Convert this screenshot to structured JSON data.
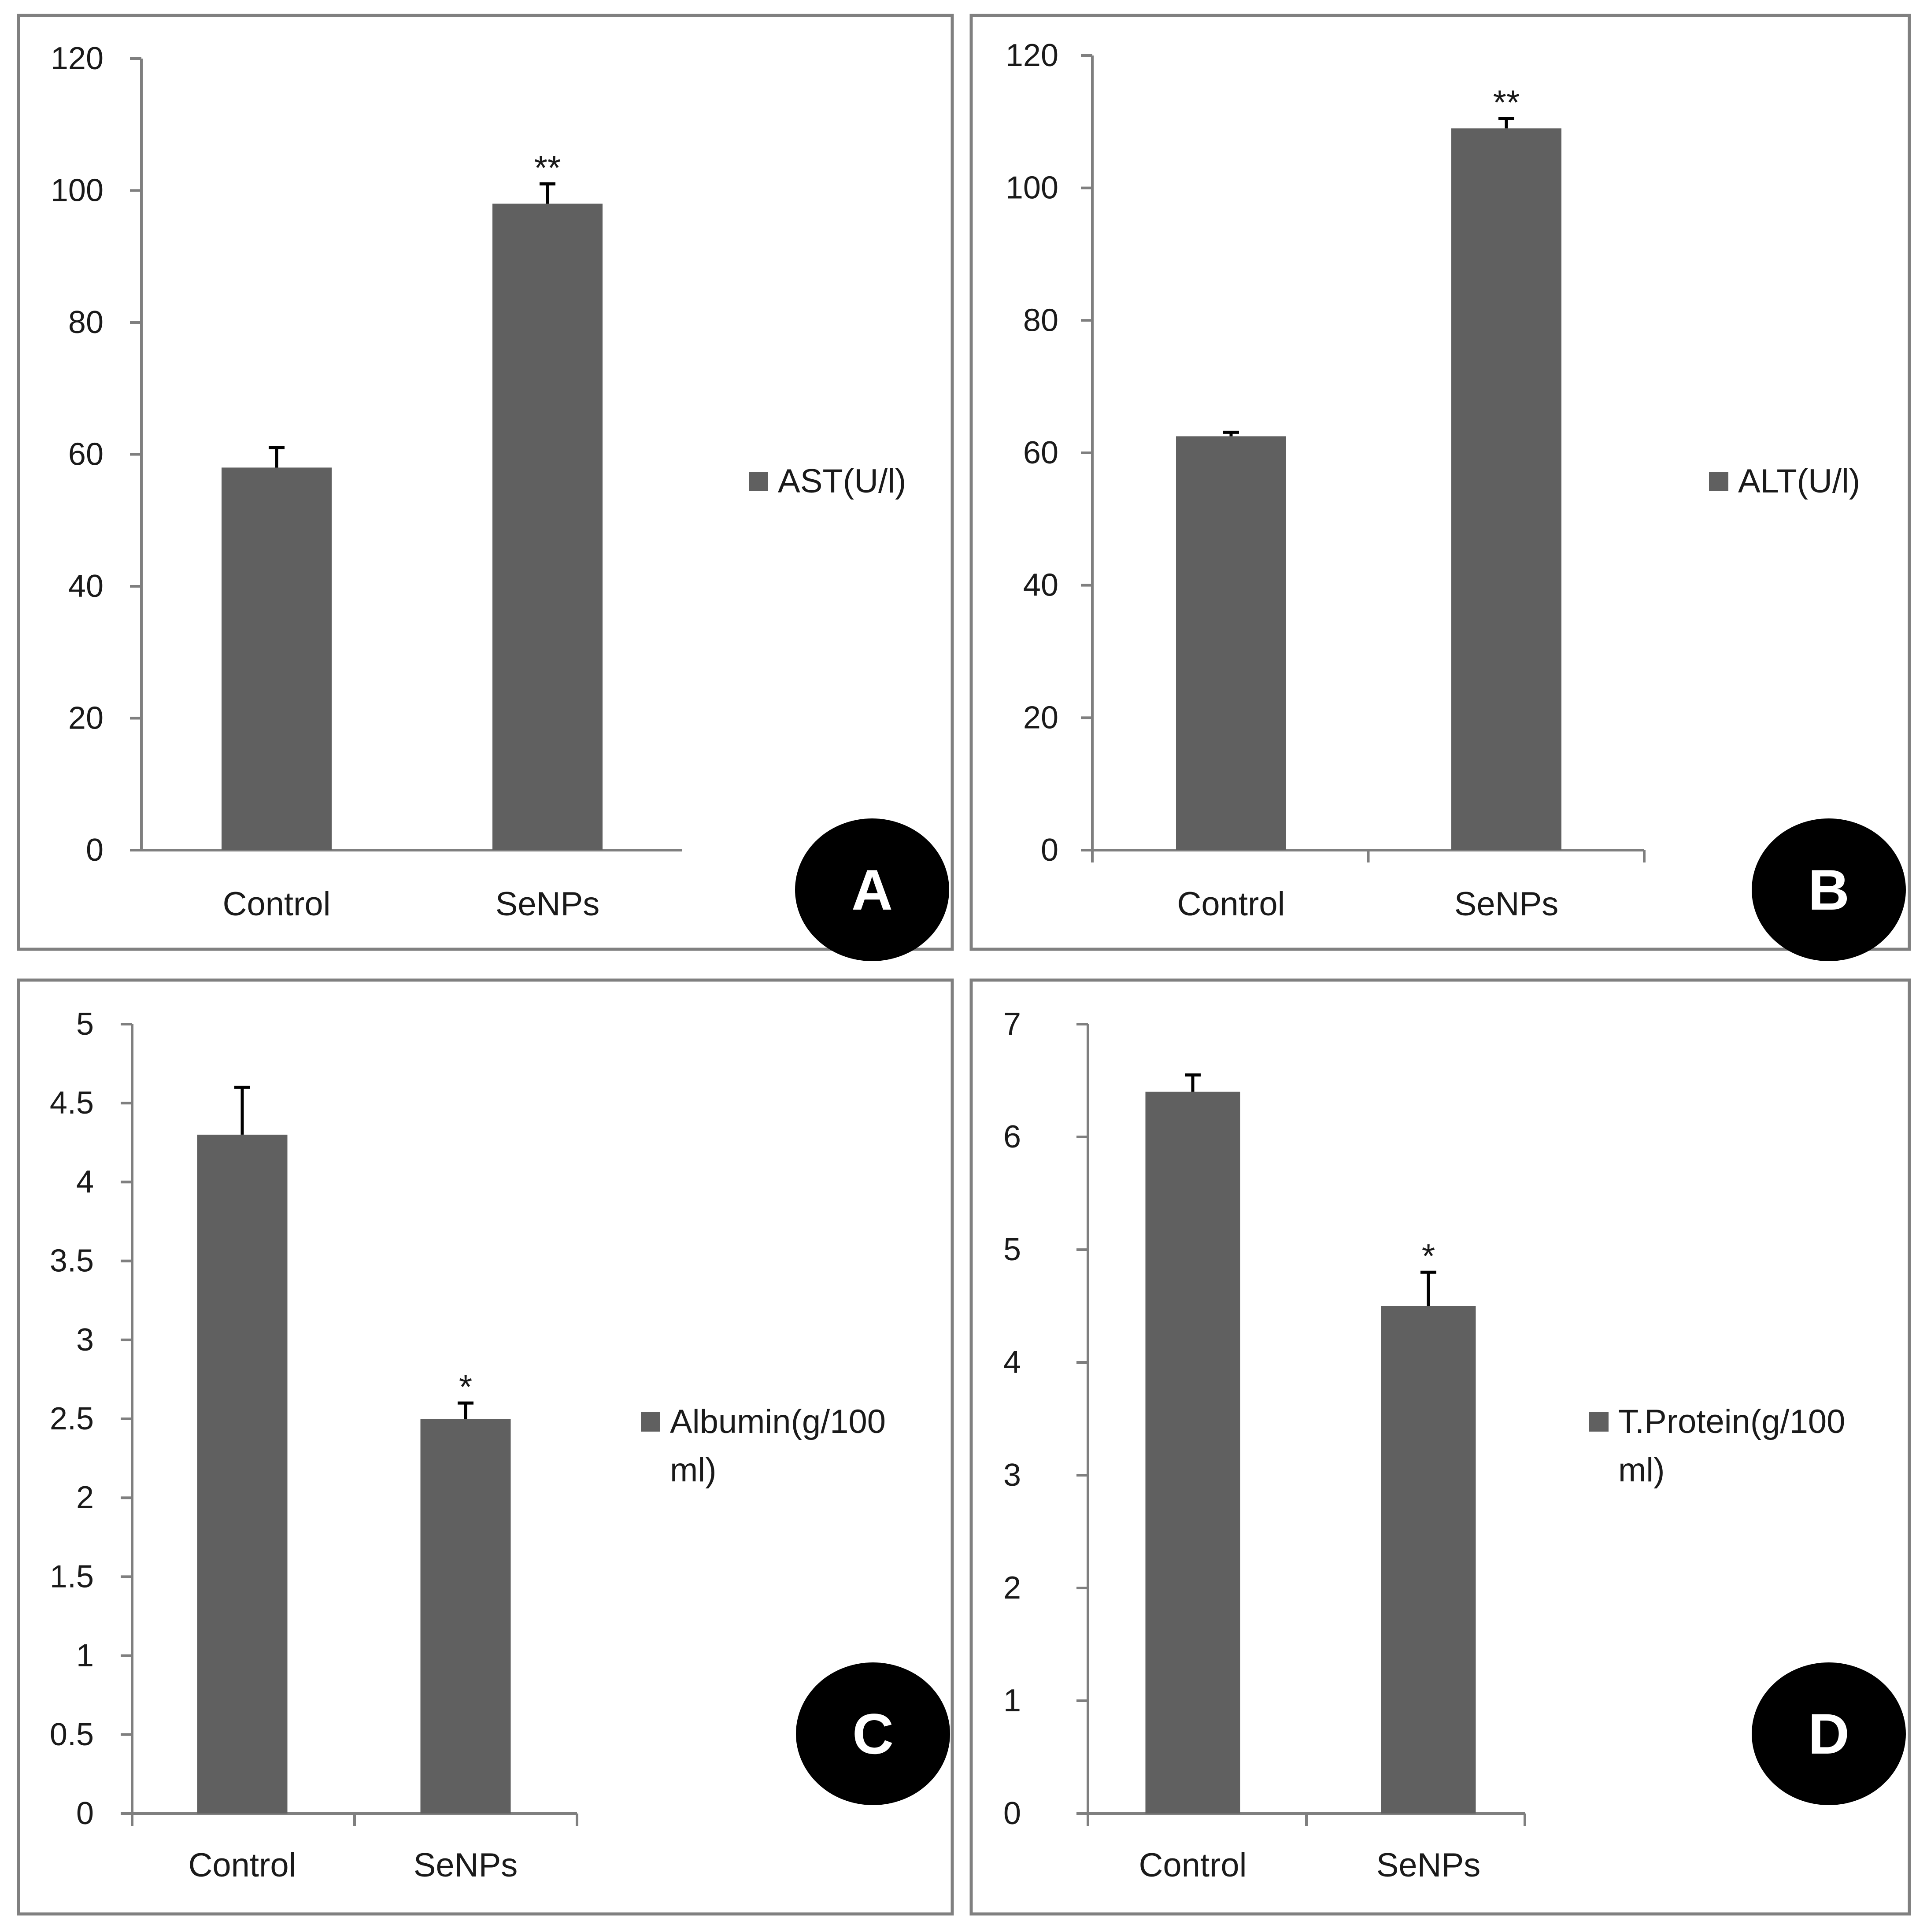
{
  "colors": {
    "bar": "#606060",
    "axis": "#7f7f7f",
    "frame": "#808080",
    "badge": "#000000",
    "text": "#1a1a1a"
  },
  "chart_data": [
    {
      "panel_label": "A",
      "type": "bar",
      "categories": [
        "Control",
        "SeNPs"
      ],
      "series": [
        {
          "name": "AST(U/l)",
          "values": [
            58,
            98
          ],
          "errors": [
            3,
            3
          ]
        }
      ],
      "annotations": [
        "",
        "**"
      ],
      "yticks": [
        "0",
        "20",
        "40",
        "60",
        "80",
        "100",
        "120"
      ],
      "ylim": [
        0,
        120
      ],
      "legend": [
        "AST(U/l)"
      ]
    },
    {
      "panel_label": "B",
      "type": "bar",
      "categories": [
        "Control",
        "SeNPs"
      ],
      "series": [
        {
          "name": "ALT(U/l)",
          "values": [
            62.5,
            109
          ],
          "errors": [
            0.6,
            1.5
          ]
        }
      ],
      "annotations": [
        "",
        "**"
      ],
      "yticks": [
        "0",
        "20",
        "40",
        "60",
        "80",
        "100",
        "120"
      ],
      "ylim": [
        0,
        120
      ],
      "legend": [
        "ALT(U/l)"
      ]
    },
    {
      "panel_label": "C",
      "type": "bar",
      "categories": [
        "Control",
        "SeNPs"
      ],
      "series": [
        {
          "name": "Albumin(g/100 ml)",
          "values": [
            4.3,
            2.5
          ],
          "errors": [
            0.3,
            0.1
          ]
        }
      ],
      "annotations": [
        "",
        "*"
      ],
      "yticks": [
        "0",
        "0.5",
        "1",
        "1.5",
        "2",
        "2.5",
        "3",
        "3.5",
        "4",
        "4.5",
        "5"
      ],
      "ylim": [
        0,
        5
      ],
      "legend": [
        "Albumin(g/100",
        "ml)"
      ]
    },
    {
      "panel_label": "D",
      "type": "bar",
      "categories": [
        "Control",
        "SeNPs"
      ],
      "series": [
        {
          "name": "T.Protein(g/100 ml)",
          "values": [
            6.4,
            4.5
          ],
          "errors": [
            0.15,
            0.3
          ]
        }
      ],
      "annotations": [
        "",
        "*"
      ],
      "yticks": [
        "0",
        "1",
        "2",
        "3",
        "4",
        "5",
        "6",
        "7"
      ],
      "ylim": [
        0,
        7
      ],
      "legend": [
        "T.Protein(g/100",
        "ml)"
      ]
    }
  ]
}
